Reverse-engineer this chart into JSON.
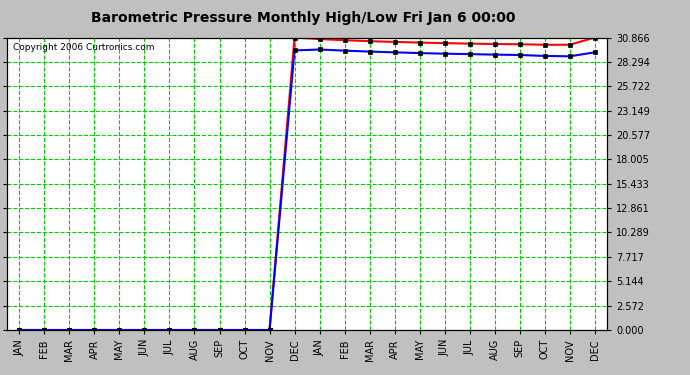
{
  "title": "Barometric Pressure Monthly High/Low Fri Jan 6 00:00",
  "copyright": "Copyright 2006 Curtronics.com",
  "background_color": "#c0c0c0",
  "plot_bg_color": "#ffffff",
  "grid_color": "#00cc00",
  "ytick_labels": [
    "0.000",
    "2.572",
    "5.144",
    "7.717",
    "10.289",
    "12.861",
    "15.433",
    "18.005",
    "20.577",
    "23.149",
    "25.722",
    "28.294",
    "30.866"
  ],
  "ytick_values": [
    0.0,
    2.572,
    5.144,
    7.717,
    10.289,
    12.861,
    15.433,
    18.005,
    20.577,
    23.149,
    25.722,
    28.294,
    30.866
  ],
  "xtick_labels": [
    "JAN",
    "FEB",
    "MAR",
    "APR",
    "MAY",
    "JUN",
    "JUL",
    "AUG",
    "SEP",
    "OCT",
    "NOV",
    "DEC",
    "JAN",
    "FEB",
    "MAR",
    "APR",
    "MAY",
    "JUN",
    "JUL",
    "AUG",
    "SEP",
    "OCT",
    "NOV",
    "DEC"
  ],
  "ylim": [
    0.0,
    30.866
  ],
  "high_color": "#ff0000",
  "low_color": "#0000ff",
  "marker_color": "#000000",
  "high_values": [
    0.0,
    0.0,
    0.0,
    0.0,
    0.0,
    0.0,
    0.0,
    0.0,
    0.0,
    0.0,
    0.0,
    30.866,
    30.7,
    30.578,
    30.48,
    30.4,
    30.33,
    30.27,
    30.22,
    30.18,
    30.15,
    30.1,
    30.1,
    30.866
  ],
  "low_values": [
    0.0,
    0.0,
    0.0,
    0.0,
    0.0,
    0.0,
    0.0,
    0.0,
    0.0,
    0.0,
    0.0,
    29.5,
    29.6,
    29.48,
    29.38,
    29.3,
    29.22,
    29.16,
    29.11,
    29.06,
    29.02,
    28.92,
    28.88,
    29.3
  ],
  "title_fontsize": 10,
  "tick_fontsize": 7,
  "figsize": [
    6.9,
    3.75
  ],
  "dpi": 100
}
